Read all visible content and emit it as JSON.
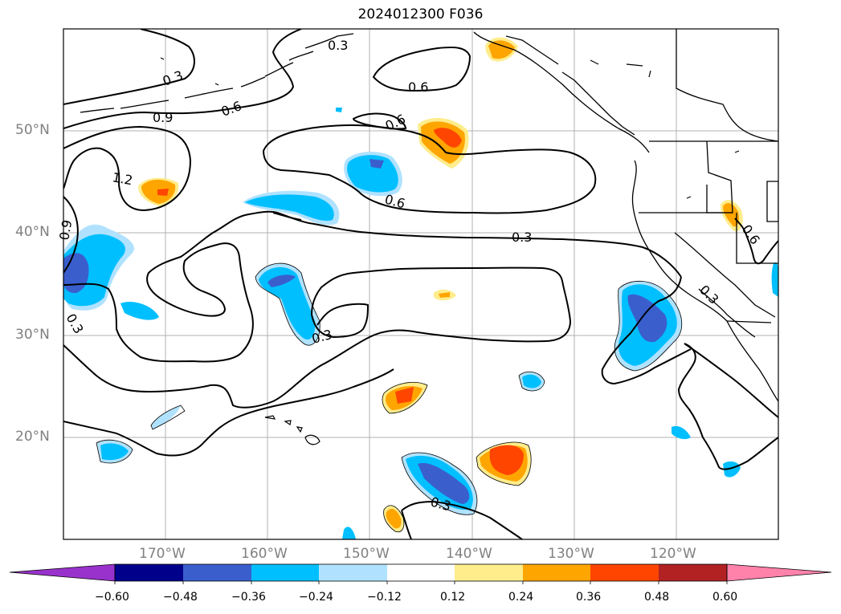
{
  "title": "2024012300 F036",
  "lat_labels": [
    "50°N",
    "40°N",
    "30°N",
    "20°N"
  ],
  "lon_labels": [
    "170°W",
    "160°W",
    "150°W",
    "140°W",
    "130°W",
    "120°W"
  ],
  "contour_labels": [
    "0.3",
    "0.9",
    "0.6",
    "1.2",
    "0.6",
    "0.3",
    "0.6",
    "0.3",
    "0.6",
    "0.3",
    "0.9",
    "0.3",
    "0.3",
    "0.3",
    "0.6"
  ],
  "colorbar": {
    "ticks": [
      "−0.60",
      "−0.48",
      "−0.36",
      "−0.24",
      "−0.12",
      "0.12",
      "0.24",
      "0.36",
      "0.48",
      "0.60"
    ],
    "colors": [
      "#9932cc",
      "#00008b",
      "#3a5fcd",
      "#00bfff",
      "#b0e2ff",
      "#ffffff",
      "#ffec8b",
      "#ffa500",
      "#ff4500",
      "#b22222",
      "#ff82ab"
    ]
  },
  "fill_colors": {
    "neg_light": "#b0e2ff",
    "neg_mid": "#00bfff",
    "neg_strong": "#3a5fcd",
    "pos_light": "#ffec8b",
    "pos_mid": "#ffa500",
    "pos_strong": "#ff4500"
  }
}
